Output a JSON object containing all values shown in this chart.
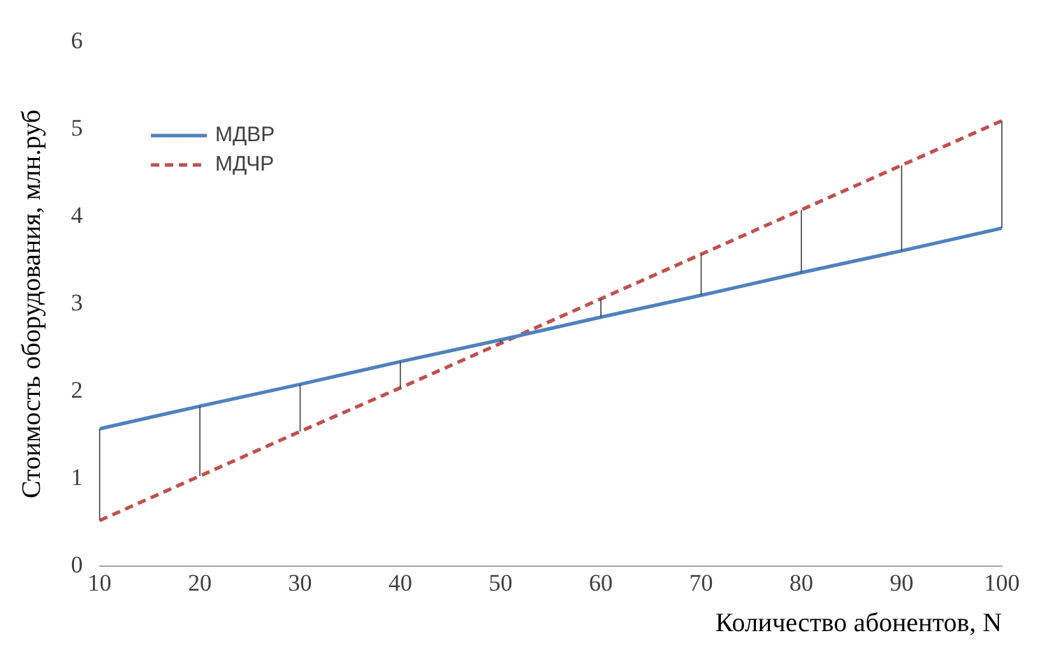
{
  "chart_data": {
    "type": "line",
    "xlabel": "Количество абонентов, N",
    "ylabel": "Стоимость оборудования, млн.руб",
    "x": [
      10,
      20,
      30,
      40,
      50,
      60,
      70,
      80,
      90,
      100
    ],
    "series": [
      {
        "name": "МДВР",
        "color": "#4f81bd",
        "line_style": "solid",
        "values": [
          1.57,
          1.83,
          2.08,
          2.34,
          2.59,
          2.85,
          3.1,
          3.36,
          3.61,
          3.87
        ],
        "errors": [
          [
            0.52,
            1.57
          ],
          [
            1.03,
            1.83
          ],
          [
            1.54,
            2.08
          ],
          [
            2.04,
            2.34
          ],
          [
            2.55,
            2.59
          ],
          [
            2.85,
            3.06
          ],
          [
            3.1,
            3.57
          ],
          [
            3.36,
            4.08
          ],
          [
            3.61,
            4.59
          ],
          [
            3.87,
            5.1
          ]
        ]
      },
      {
        "name": "МДЧР",
        "color": "#c0504d",
        "line_style": "dashed",
        "values": [
          0.52,
          1.03,
          1.54,
          2.04,
          2.55,
          3.06,
          3.57,
          4.08,
          4.59,
          5.1
        ]
      }
    ],
    "xlim": [
      10,
      100
    ],
    "xticks": [
      10,
      20,
      30,
      40,
      50,
      60,
      70,
      80,
      90,
      100
    ],
    "ylim": [
      0,
      6
    ],
    "yticks": [
      0,
      1,
      2,
      3,
      4,
      5,
      6
    ],
    "grid": false,
    "legend": "top left",
    "marker": "none"
  }
}
